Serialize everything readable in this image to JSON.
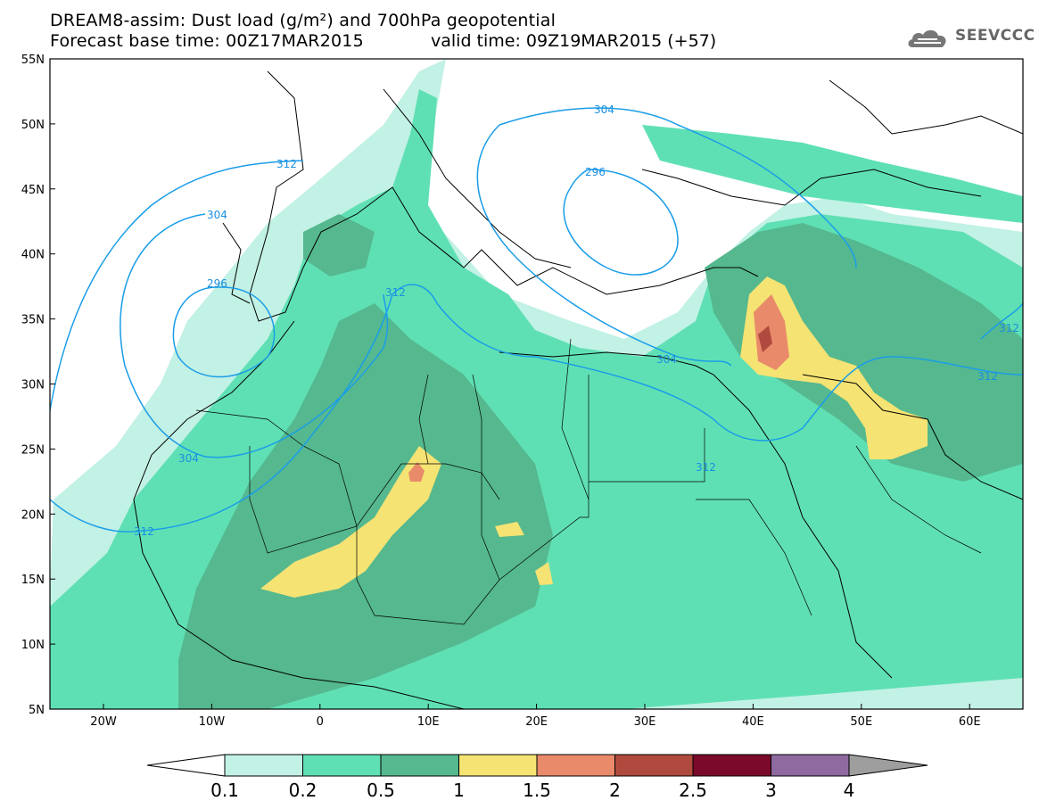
{
  "header": {
    "title_line1": "DREAM8-assim: Dust load (g/m²) and 700hPa geopotential",
    "title_line2": "Forecast base time: 00Z17MAR2015",
    "valid_time": "valid time: 09Z19MAR2015 (+57)",
    "logo_text": "SEEVCCC",
    "logo_icon": "cloud-icon"
  },
  "map": {
    "lat_labels": [
      "55N",
      "50N",
      "45N",
      "40N",
      "35N",
      "30N",
      "25N",
      "20N",
      "15N",
      "10N",
      "5N"
    ],
    "lon_labels": [
      "20W",
      "10W",
      "0",
      "10E",
      "20E",
      "30E",
      "40E",
      "50E",
      "60E"
    ],
    "contour_labels": [
      "304",
      "312",
      "296",
      "304",
      "296",
      "312",
      "304",
      "312",
      "304",
      "312",
      "312",
      "312"
    ],
    "colors": {
      "c1": "#c2f1e5",
      "c2": "#5fe0b4",
      "c3": "#55b88f",
      "c4": "#f5e373",
      "c5": "#e98a6b",
      "c6": "#b04a3e",
      "contour": "#1a9de8"
    }
  },
  "colorbar": {
    "labels": [
      "0.1",
      "0.2",
      "0.5",
      "1",
      "1.5",
      "2",
      "2.5",
      "3",
      "4"
    ],
    "colors": [
      "#c2f1e5",
      "#5fe0b4",
      "#55b88f",
      "#f5e373",
      "#e98a6b",
      "#b04a3e",
      "#7b0a2a",
      "#8e6aa0"
    ]
  }
}
